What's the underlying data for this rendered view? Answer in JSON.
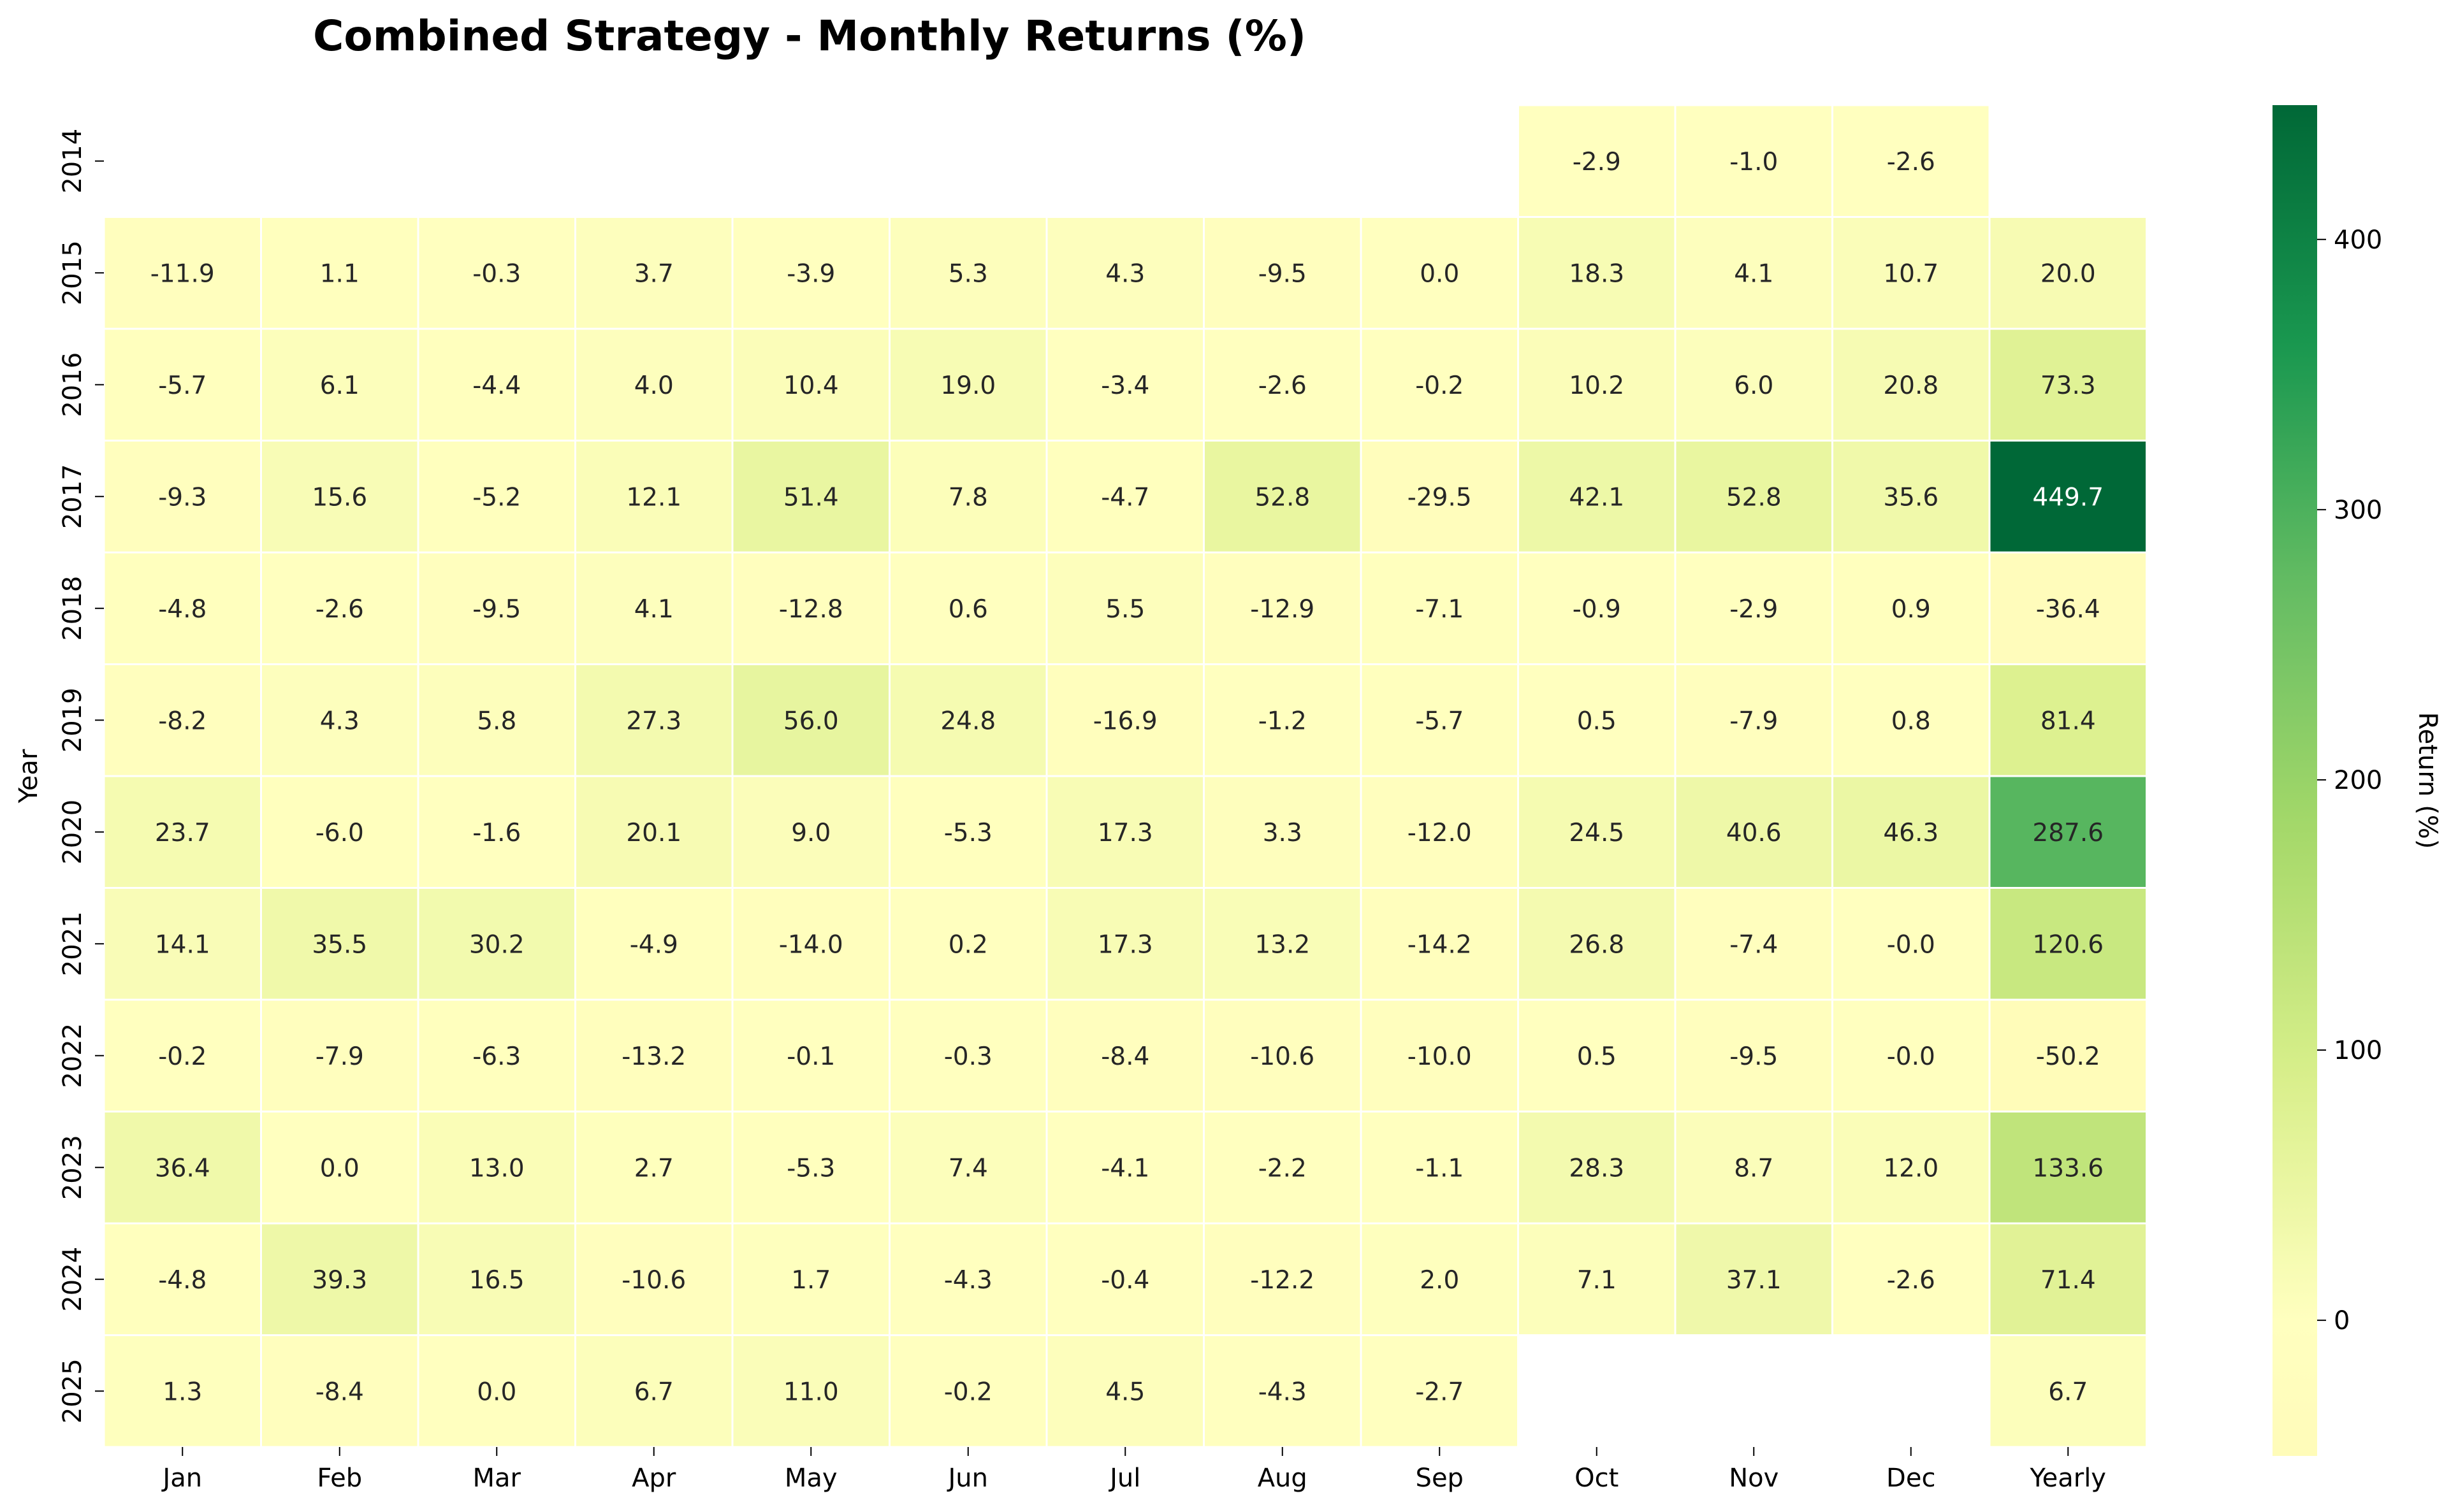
{
  "chart_data": {
    "type": "heatmap",
    "title": "Combined Strategy - Monthly Returns (%)",
    "xlabel": "",
    "ylabel": "Year",
    "colorbar_label": "Return (%)",
    "colorbar_ticks": [
      0,
      100,
      200,
      300,
      400
    ],
    "colorbar_tick_labels": [
      "0",
      "100",
      "200",
      "300",
      "400"
    ],
    "vmin": -50.2,
    "vmax": 449.7,
    "colormap": "RdYlGn (centered at 0)",
    "columns": [
      "Jan",
      "Feb",
      "Mar",
      "Apr",
      "May",
      "Jun",
      "Jul",
      "Aug",
      "Sep",
      "Oct",
      "Nov",
      "Dec",
      "Yearly"
    ],
    "rows": [
      "2014",
      "2015",
      "2016",
      "2017",
      "2018",
      "2019",
      "2020",
      "2021",
      "2022",
      "2023",
      "2024",
      "2025"
    ],
    "values": [
      [
        null,
        null,
        null,
        null,
        null,
        null,
        null,
        null,
        null,
        -2.9,
        -1.0,
        -2.6,
        null
      ],
      [
        -11.9,
        1.1,
        -0.3,
        3.7,
        -3.9,
        5.3,
        4.3,
        -9.5,
        0.0,
        18.3,
        4.1,
        10.7,
        20.0
      ],
      [
        -5.7,
        6.1,
        -4.4,
        4.0,
        10.4,
        19.0,
        -3.4,
        -2.6,
        -0.2,
        10.2,
        6.0,
        20.8,
        73.3
      ],
      [
        -9.3,
        15.6,
        -5.2,
        12.1,
        51.4,
        7.8,
        -4.7,
        52.8,
        -29.5,
        42.1,
        52.8,
        35.6,
        449.7
      ],
      [
        -4.8,
        -2.6,
        -9.5,
        4.1,
        -12.8,
        0.6,
        5.5,
        -12.9,
        -7.1,
        -0.9,
        -2.9,
        0.9,
        -36.4
      ],
      [
        -8.2,
        4.3,
        5.8,
        27.3,
        56.0,
        24.8,
        -16.9,
        -1.2,
        -5.7,
        0.5,
        -7.9,
        0.8,
        81.4
      ],
      [
        23.7,
        -6.0,
        -1.6,
        20.1,
        9.0,
        -5.3,
        17.3,
        3.3,
        -12.0,
        24.5,
        40.6,
        46.3,
        287.6
      ],
      [
        14.1,
        35.5,
        30.2,
        -4.9,
        -14.0,
        0.2,
        17.3,
        13.2,
        -14.2,
        26.8,
        -7.4,
        -0.0,
        120.6
      ],
      [
        -0.2,
        -7.9,
        -6.3,
        -13.2,
        -0.1,
        -0.3,
        -8.4,
        -10.6,
        -10.0,
        0.5,
        -9.5,
        -0.0,
        -50.2
      ],
      [
        36.4,
        0.0,
        13.0,
        2.7,
        -5.3,
        7.4,
        -4.1,
        -2.2,
        -1.1,
        28.3,
        8.7,
        12.0,
        133.6
      ],
      [
        -4.8,
        39.3,
        16.5,
        -10.6,
        1.7,
        -4.3,
        -0.4,
        -12.2,
        2.0,
        7.1,
        37.1,
        -2.6,
        71.4
      ],
      [
        1.3,
        -8.4,
        0.0,
        6.7,
        11.0,
        -0.2,
        4.5,
        -4.3,
        -2.7,
        null,
        null,
        null,
        6.7
      ]
    ]
  }
}
